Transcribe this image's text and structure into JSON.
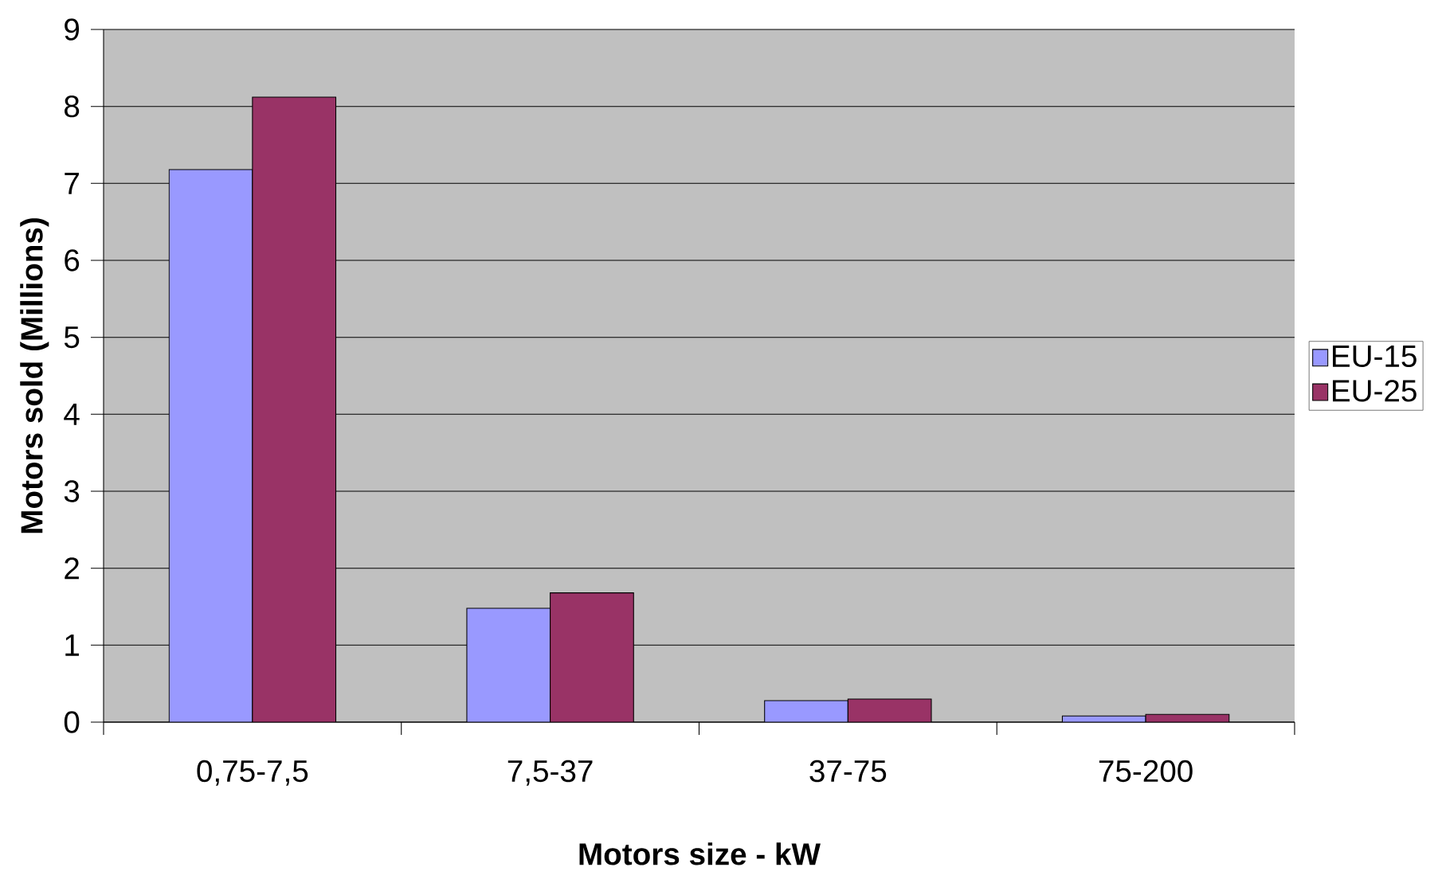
{
  "chart_data": {
    "type": "bar",
    "xlabel": "Motors size - kW",
    "ylabel": "Motors sold (Millions)",
    "categories": [
      "0,75-7,5",
      "7,5-37",
      "37-75",
      "75-200"
    ],
    "series": [
      {
        "name": "EU-15",
        "color": "#9999ff",
        "values": [
          7.18,
          1.48,
          0.28,
          0.08
        ]
      },
      {
        "name": "EU-25",
        "color": "#993366",
        "values": [
          8.12,
          1.68,
          0.3,
          0.1
        ]
      }
    ],
    "ylim": [
      0,
      9
    ],
    "yticks": [
      0,
      1,
      2,
      3,
      4,
      5,
      6,
      7,
      8,
      9
    ],
    "grid": "y",
    "legend": "right"
  }
}
